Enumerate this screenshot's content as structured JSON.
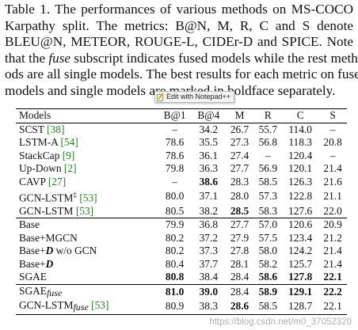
{
  "caption": {
    "line1": "Table 1. The performances of various methods on MS-COCO",
    "line2": "Karpathy split. The metrics: B@N, M, R, C and S denote",
    "line3": "BLEU@N, METEOR, ROUGE-L, CIDEr-D and SPICE. Note",
    "line4_a": "that the",
    "line4_b": "fuse",
    "line4_c": "subscript indicates fused models while the rest meth-",
    "line5": "ods are all single models. The best results for each metric on fused",
    "line6": "models and single models are marked in boldface separately."
  },
  "tooltip": {
    "text": "Edit with Notepad++",
    "icon": "notepad-plus-plus-icon"
  },
  "table": {
    "headers": [
      "Models",
      "B@1",
      "B@4",
      "M",
      "R",
      "C",
      "S"
    ],
    "group1": [
      {
        "name": "SCST",
        "ref": "[38]",
        "vals": [
          "–",
          "34.2",
          "26.7",
          "55.7",
          "114.0",
          "–"
        ]
      },
      {
        "name": "LSTM-A",
        "ref": "[54]",
        "vals": [
          "78.6",
          "35.5",
          "27.3",
          "56.8",
          "118.3",
          "20.8"
        ]
      },
      {
        "name": "StackCap",
        "ref": "[9]",
        "vals": [
          "78.6",
          "36.1",
          "27.4",
          "–",
          "120.4",
          "–"
        ]
      },
      {
        "name": "Up-Down",
        "ref": "[2]",
        "vals": [
          "79.8",
          "36.3",
          "27.7",
          "56.9",
          "120.1",
          "21.4"
        ]
      },
      {
        "name": "CAVP",
        "ref": "[27]",
        "vals": [
          "–",
          "38.6",
          "28.3",
          "58.5",
          "126.3",
          "21.6"
        ]
      },
      {
        "name": "GCN-LSTM",
        "sup": "‡",
        "ref": "[53]",
        "vals": [
          "80.0",
          "37.1",
          "28.0",
          "57.3",
          "122.8",
          "21.1"
        ]
      },
      {
        "name": "GCN-LSTM",
        "ref": "[53]",
        "vals": [
          "80.5",
          "38.2",
          "28.5",
          "58.3",
          "127.6",
          "22.0"
        ]
      }
    ],
    "group2": [
      {
        "name": "Base",
        "vals": [
          "79.9",
          "36.8",
          "27.7",
          "57.0",
          "120.6",
          "20.9"
        ]
      },
      {
        "name": "Base+MGCN",
        "vals": [
          "80.2",
          "37.2",
          "27.9",
          "57.5",
          "123.4",
          "21.2"
        ]
      },
      {
        "name_a": "Base+",
        "name_d": "D",
        "name_b": " w/o GCN",
        "vals": [
          "80.2",
          "37.3",
          "27.8",
          "58.0",
          "124.2",
          "21.4"
        ]
      },
      {
        "name_a": "Base+",
        "name_d": "D",
        "name_b": "",
        "vals": [
          "80.4",
          "37.7",
          "28.1",
          "58.2",
          "125.7",
          "21.4"
        ]
      },
      {
        "name": "SGAE",
        "vals": [
          "80.8",
          "38.4",
          "28.4",
          "58.6",
          "127.8",
          "22.1"
        ]
      }
    ],
    "group3": [
      {
        "name": "SGAE",
        "sub": "fuse",
        "vals": [
          "81.0",
          "39.0",
          "28.4",
          "58.9",
          "129.1",
          "22.2"
        ]
      },
      {
        "name": "GCN-LSTM",
        "sub": "fuse",
        "ref": "[53]",
        "vals": [
          "80.9",
          "38.3",
          "28.6",
          "58.5",
          "128.7",
          "22.1"
        ]
      }
    ]
  },
  "watermark": "https://blog.csdn.net/m0_37052320"
}
